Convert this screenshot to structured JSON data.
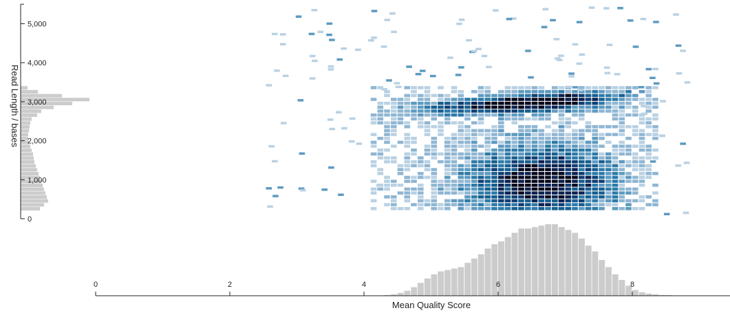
{
  "chart_data": {
    "type": "heatmap",
    "xlabel": "Mean Quality Score",
    "ylabel": "Read Length / bases",
    "xlim": [
      0,
      9.5
    ],
    "ylim": [
      0,
      5500
    ],
    "x_ticks": [
      {
        "value": 0,
        "label": "0"
      },
      {
        "value": 2,
        "label": "2"
      },
      {
        "value": 4,
        "label": "4"
      },
      {
        "value": 6,
        "label": "6"
      },
      {
        "value": 8,
        "label": "8"
      }
    ],
    "y_ticks": [
      {
        "value": 0,
        "label": "0"
      },
      {
        "value": 1000,
        "label": "1,000"
      },
      {
        "value": 2000,
        "label": "2,000"
      },
      {
        "value": 3000,
        "label": "3,000"
      },
      {
        "value": 4000,
        "label": "4,000"
      },
      {
        "value": 5000,
        "label": "5,000"
      }
    ],
    "density_colors": [
      "#b9d1e3",
      "#8fb6d3",
      "#5d9ac0",
      "#2d7aa8",
      "#175e8e",
      "#103e73",
      "#0b2150",
      "#05081c"
    ],
    "histogram_color": "#cccccc",
    "grid": false,
    "quality_histogram": {
      "x": [
        4.3,
        4.4,
        4.5,
        4.6,
        4.7,
        4.8,
        4.9,
        5.0,
        5.1,
        5.2,
        5.3,
        5.4,
        5.5,
        5.6,
        5.7,
        5.8,
        5.9,
        6.0,
        6.1,
        6.2,
        6.3,
        6.4,
        6.5,
        6.6,
        6.7,
        6.8,
        6.9,
        7.0,
        7.1,
        7.2,
        7.3,
        7.4,
        7.5,
        7.6,
        7.7,
        7.8,
        7.9,
        8.0,
        8.1,
        8.2,
        8.3,
        8.4,
        8.5
      ],
      "values": [
        1,
        2,
        4,
        7,
        12,
        18,
        24,
        30,
        34,
        36,
        38,
        40,
        46,
        52,
        58,
        66,
        72,
        76,
        82,
        88,
        94,
        94,
        96,
        98,
        100,
        100,
        96,
        92,
        88,
        80,
        70,
        62,
        50,
        40,
        30,
        22,
        14,
        8,
        5,
        3,
        2,
        1,
        1
      ]
    },
    "length_histogram": {
      "y": [
        200,
        300,
        400,
        500,
        600,
        700,
        800,
        900,
        1000,
        1100,
        1200,
        1300,
        1400,
        1500,
        1600,
        1700,
        1800,
        1900,
        2000,
        2100,
        2200,
        2300,
        2400,
        2500,
        2600,
        2700,
        2800,
        2900,
        3000,
        3100,
        3200,
        3300
      ],
      "values": [
        28,
        34,
        40,
        38,
        36,
        34,
        32,
        30,
        28,
        26,
        24,
        22,
        20,
        19,
        18,
        16,
        14,
        12,
        11,
        11,
        12,
        13,
        14,
        16,
        24,
        30,
        48,
        75,
        100,
        60,
        25,
        10
      ]
    }
  }
}
